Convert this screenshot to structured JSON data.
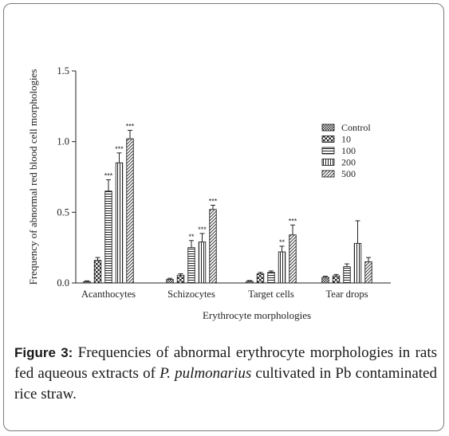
{
  "chart_data": {
    "type": "bar",
    "categories": [
      "Acanthocytes",
      "Schizocytes",
      "Target cells",
      "Tear drops"
    ],
    "series": [
      {
        "name": "Control",
        "pattern": "checker-dense",
        "values": [
          0.01,
          0.025,
          0.012,
          0.04
        ],
        "errors": [
          0.005,
          0.008,
          0.005,
          0.008
        ],
        "sig": [
          "",
          "",
          "",
          ""
        ]
      },
      {
        "name": "10",
        "pattern": "checker",
        "values": [
          0.16,
          0.055,
          0.065,
          0.05
        ],
        "errors": [
          0.02,
          0.01,
          0.01,
          0.01
        ],
        "sig": [
          "",
          "",
          "",
          ""
        ]
      },
      {
        "name": "100",
        "pattern": "horizontal",
        "values": [
          0.65,
          0.25,
          0.075,
          0.115
        ],
        "errors": [
          0.08,
          0.05,
          0.01,
          0.02
        ],
        "sig": [
          "***",
          "**",
          "",
          ""
        ]
      },
      {
        "name": "200",
        "pattern": "vertical",
        "values": [
          0.85,
          0.29,
          0.22,
          0.28
        ],
        "errors": [
          0.07,
          0.06,
          0.04,
          0.16
        ],
        "sig": [
          "***",
          "***",
          "**",
          ""
        ]
      },
      {
        "name": "500",
        "pattern": "diagonal",
        "values": [
          1.02,
          0.52,
          0.34,
          0.15
        ],
        "errors": [
          0.06,
          0.03,
          0.07,
          0.03
        ],
        "sig": [
          "***",
          "***",
          "***",
          ""
        ]
      }
    ],
    "xlabel": "Erythrocyte morphologies",
    "ylabel": "Frequency of abnormal red blood cell morphologies",
    "ylim": [
      0,
      1.5
    ],
    "yticks": [
      "0.0",
      "0.5",
      "1.0",
      "1.5"
    ],
    "legend_placement": "top-right",
    "grid": false
  },
  "caption": {
    "label": "Figure 3:",
    "text_before": " Frequencies of abnormal erythrocyte morphologies in rats fed aqueous extracts of ",
    "species": "P. pulmonarius",
    "text_after": " cultivated in Pb contaminated rice straw."
  }
}
